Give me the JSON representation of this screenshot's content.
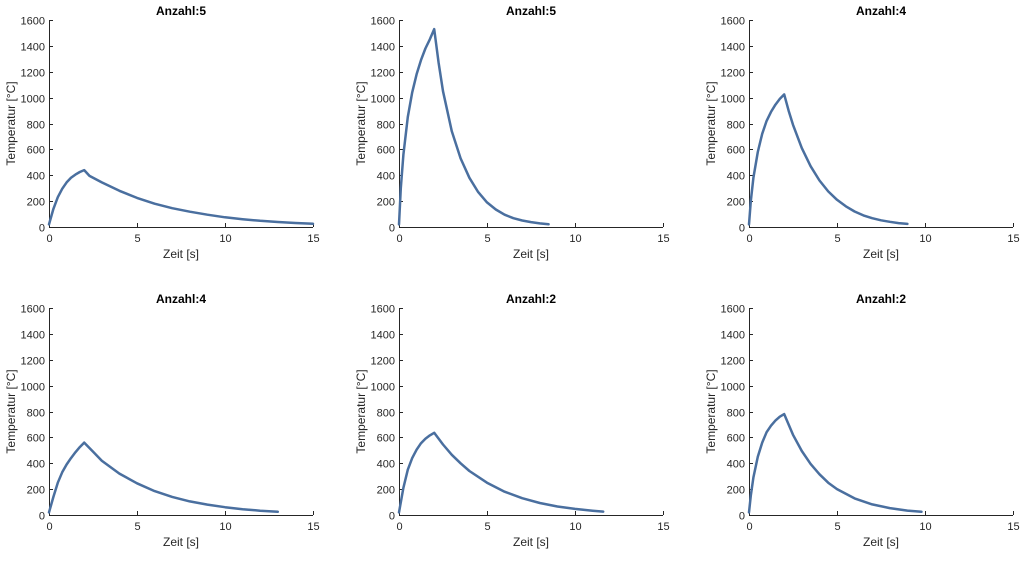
{
  "line_color": "#4a6f9f",
  "chart_data": [
    {
      "type": "line",
      "title": "Anzahl:5",
      "xlabel": "Zeit [s]",
      "ylabel": "Temperatur [°C]",
      "xlim": [
        0,
        15
      ],
      "ylim": [
        0,
        1600
      ],
      "xticks": [
        0,
        5,
        10,
        15
      ],
      "yticks": [
        0,
        200,
        400,
        600,
        800,
        1000,
        1200,
        1400,
        1600
      ],
      "grid": false,
      "series": [
        {
          "x": [
            0,
            0.25,
            0.5,
            0.75,
            1.0,
            1.25,
            1.5,
            1.75,
            2.0,
            2.3,
            3,
            4,
            5,
            6,
            7,
            8,
            9,
            10,
            11,
            12,
            13,
            14,
            15
          ],
          "y": [
            20,
            140,
            230,
            295,
            345,
            380,
            405,
            425,
            440,
            395,
            345,
            280,
            225,
            180,
            145,
            118,
            95,
            75,
            60,
            48,
            39,
            31,
            25
          ]
        }
      ]
    },
    {
      "type": "line",
      "title": "Anzahl:5",
      "xlabel": "Zeit [s]",
      "ylabel": "Temperatur [°C]",
      "xlim": [
        0,
        15
      ],
      "ylim": [
        0,
        1600
      ],
      "xticks": [
        0,
        5,
        10,
        15
      ],
      "yticks": [
        0,
        200,
        400,
        600,
        800,
        1000,
        1200,
        1400,
        1600
      ],
      "grid": false,
      "series": [
        {
          "x": [
            0,
            0.1,
            0.25,
            0.5,
            0.75,
            1.0,
            1.25,
            1.5,
            1.75,
            2.0,
            2.25,
            2.5,
            3,
            3.5,
            4,
            4.5,
            5,
            5.5,
            6,
            6.5,
            7,
            7.5,
            8,
            8.5
          ],
          "y": [
            20,
            300,
            560,
            850,
            1040,
            1180,
            1290,
            1380,
            1450,
            1530,
            1270,
            1050,
            740,
            530,
            380,
            270,
            190,
            135,
            95,
            68,
            50,
            38,
            28,
            22
          ]
        }
      ]
    },
    {
      "type": "line",
      "title": "Anzahl:4",
      "xlabel": "Zeit [s]",
      "ylabel": "Temperatur [°C]",
      "xlim": [
        0,
        15
      ],
      "ylim": [
        0,
        1600
      ],
      "xticks": [
        0,
        5,
        10,
        15
      ],
      "yticks": [
        0,
        200,
        400,
        600,
        800,
        1000,
        1200,
        1400,
        1600
      ],
      "grid": false,
      "series": [
        {
          "x": [
            0,
            0.1,
            0.25,
            0.5,
            0.75,
            1.0,
            1.25,
            1.5,
            1.75,
            2.0,
            2.25,
            2.5,
            3,
            3.5,
            4,
            4.5,
            5,
            5.5,
            6,
            6.5,
            7,
            7.5,
            8,
            8.5,
            9
          ],
          "y": [
            20,
            200,
            380,
            580,
            720,
            820,
            890,
            945,
            990,
            1025,
            900,
            790,
            610,
            470,
            360,
            275,
            210,
            160,
            120,
            90,
            68,
            52,
            40,
            30,
            24
          ]
        }
      ]
    },
    {
      "type": "line",
      "title": "Anzahl:4",
      "xlabel": "Zeit [s]",
      "ylabel": "Temperatur [°C]",
      "xlim": [
        0,
        15
      ],
      "ylim": [
        0,
        1600
      ],
      "xticks": [
        0,
        5,
        10,
        15
      ],
      "yticks": [
        0,
        200,
        400,
        600,
        800,
        1000,
        1200,
        1400,
        1600
      ],
      "grid": false,
      "series": [
        {
          "x": [
            0,
            0.25,
            0.5,
            0.75,
            1.0,
            1.25,
            1.5,
            1.75,
            2.0,
            2.5,
            3,
            4,
            5,
            6,
            7,
            8,
            9,
            10,
            11,
            12,
            13
          ],
          "y": [
            20,
            140,
            250,
            330,
            390,
            440,
            485,
            525,
            560,
            490,
            420,
            320,
            245,
            185,
            140,
            105,
            80,
            60,
            45,
            33,
            25
          ]
        }
      ]
    },
    {
      "type": "line",
      "title": "Anzahl:2",
      "xlabel": "Zeit [s]",
      "ylabel": "Temperatur [°C]",
      "xlim": [
        0,
        15
      ],
      "ylim": [
        0,
        1600
      ],
      "xticks": [
        0,
        5,
        10,
        15
      ],
      "yticks": [
        0,
        200,
        400,
        600,
        800,
        1000,
        1200,
        1400,
        1600
      ],
      "grid": false,
      "series": [
        {
          "x": [
            0,
            0.25,
            0.5,
            0.75,
            1.0,
            1.25,
            1.5,
            1.75,
            2.0,
            2.5,
            3,
            3.5,
            4,
            5,
            6,
            7,
            8,
            9,
            10,
            11,
            11.6
          ],
          "y": [
            20,
            210,
            350,
            440,
            505,
            555,
            590,
            615,
            635,
            545,
            465,
            400,
            340,
            250,
            180,
            130,
            93,
            66,
            47,
            33,
            26
          ]
        }
      ]
    },
    {
      "type": "line",
      "title": "Anzahl:2",
      "xlabel": "Zeit [s]",
      "ylabel": "Temperatur [°C]",
      "xlim": [
        0,
        15
      ],
      "ylim": [
        0,
        1600
      ],
      "xticks": [
        0,
        5,
        10,
        15
      ],
      "yticks": [
        0,
        200,
        400,
        600,
        800,
        1000,
        1200,
        1400,
        1600
      ],
      "grid": false,
      "series": [
        {
          "x": [
            0,
            0.1,
            0.25,
            0.5,
            0.75,
            1.0,
            1.25,
            1.5,
            1.75,
            2.0,
            2.5,
            3,
            3.5,
            4,
            4.5,
            5,
            6,
            7,
            8,
            9,
            9.8
          ],
          "y": [
            20,
            150,
            290,
            450,
            560,
            640,
            690,
            730,
            760,
            780,
            620,
            495,
            395,
            315,
            250,
            200,
            128,
            82,
            53,
            34,
            25
          ]
        }
      ]
    }
  ]
}
